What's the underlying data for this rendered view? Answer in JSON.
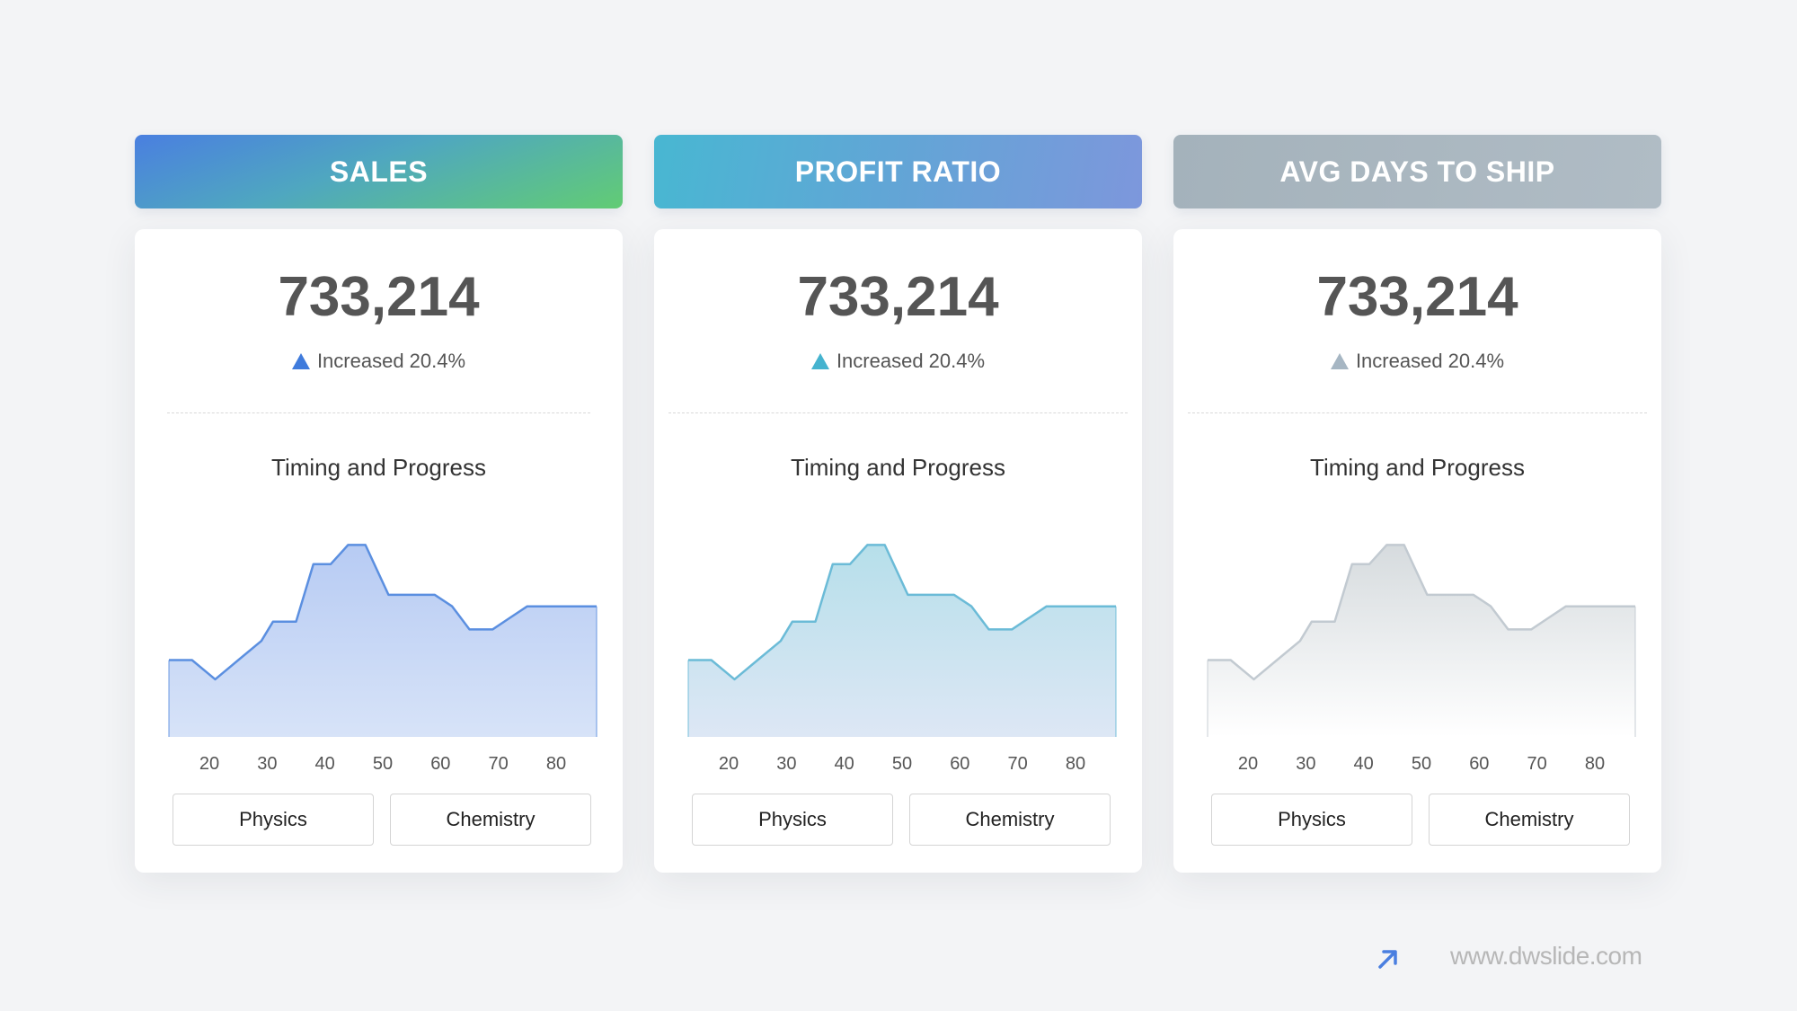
{
  "panels": [
    {
      "title": "SALES",
      "value": "733,214",
      "delta": "Increased 20.4%",
      "chart_title": "Timing and Progress",
      "buttons": [
        "Physics",
        "Chemistry"
      ],
      "colors": {
        "line": "#5b8fe0",
        "fill_top": "#b7cbf3",
        "fill_bottom": "#d7e3f8",
        "triangle": "#3f7bdc"
      }
    },
    {
      "title": "PROFIT RATIO",
      "value": "733,214",
      "delta": "Increased 20.4%",
      "chart_title": "Timing and Progress",
      "buttons": [
        "Physics",
        "Chemistry"
      ],
      "colors": {
        "line": "#6bbbd7",
        "fill_top": "#b6dfea",
        "fill_bottom": "#dde7f5",
        "triangle": "#45b3cf"
      }
    },
    {
      "title": "AVG DAYS TO SHIP",
      "value": "733,214",
      "delta": "Increased 20.4%",
      "chart_title": "Timing and Progress",
      "buttons": [
        "Physics",
        "Chemistry"
      ],
      "colors": {
        "line": "#c2cad1",
        "fill_top": "#d6dbde",
        "fill_bottom": "#ffffff",
        "triangle": "#a6b6c3"
      }
    }
  ],
  "chart_data": [
    {
      "type": "area",
      "x": [
        13,
        17,
        21,
        25,
        29,
        31,
        35,
        38,
        41,
        44,
        47,
        51,
        55,
        59,
        62,
        65,
        69,
        72,
        75,
        79,
        83,
        87
      ],
      "y": [
        20,
        20,
        15,
        20,
        25,
        30,
        30,
        45,
        45,
        50,
        50,
        37,
        37,
        37,
        34,
        28,
        28,
        31,
        34,
        34,
        34,
        34
      ],
      "xticks": [
        "20",
        "30",
        "40",
        "50",
        "60",
        "70",
        "80"
      ],
      "xlim": [
        13,
        87
      ],
      "ylim": [
        0,
        55
      ]
    },
    {
      "type": "area",
      "x": [
        13,
        17,
        21,
        25,
        29,
        31,
        35,
        38,
        41,
        44,
        47,
        51,
        55,
        59,
        62,
        65,
        69,
        72,
        75,
        79,
        83,
        87
      ],
      "y": [
        20,
        20,
        15,
        20,
        25,
        30,
        30,
        45,
        45,
        50,
        50,
        37,
        37,
        37,
        34,
        28,
        28,
        31,
        34,
        34,
        34,
        34
      ],
      "xticks": [
        "20",
        "30",
        "40",
        "50",
        "60",
        "70",
        "80"
      ],
      "xlim": [
        13,
        87
      ],
      "ylim": [
        0,
        55
      ]
    },
    {
      "type": "area",
      "x": [
        13,
        17,
        21,
        25,
        29,
        31,
        35,
        38,
        41,
        44,
        47,
        51,
        55,
        59,
        62,
        65,
        69,
        72,
        75,
        79,
        83,
        87
      ],
      "y": [
        20,
        20,
        15,
        20,
        25,
        30,
        30,
        45,
        45,
        50,
        50,
        37,
        37,
        37,
        34,
        28,
        28,
        31,
        34,
        34,
        34,
        34
      ],
      "xticks": [
        "20",
        "30",
        "40",
        "50",
        "60",
        "70",
        "80"
      ],
      "xlim": [
        13,
        87
      ],
      "ylim": [
        0,
        55
      ]
    }
  ],
  "footer": {
    "url": "www.dwslide.com",
    "icon": "arrow-up-right-icon",
    "icon_color": "#4a7fe0"
  }
}
